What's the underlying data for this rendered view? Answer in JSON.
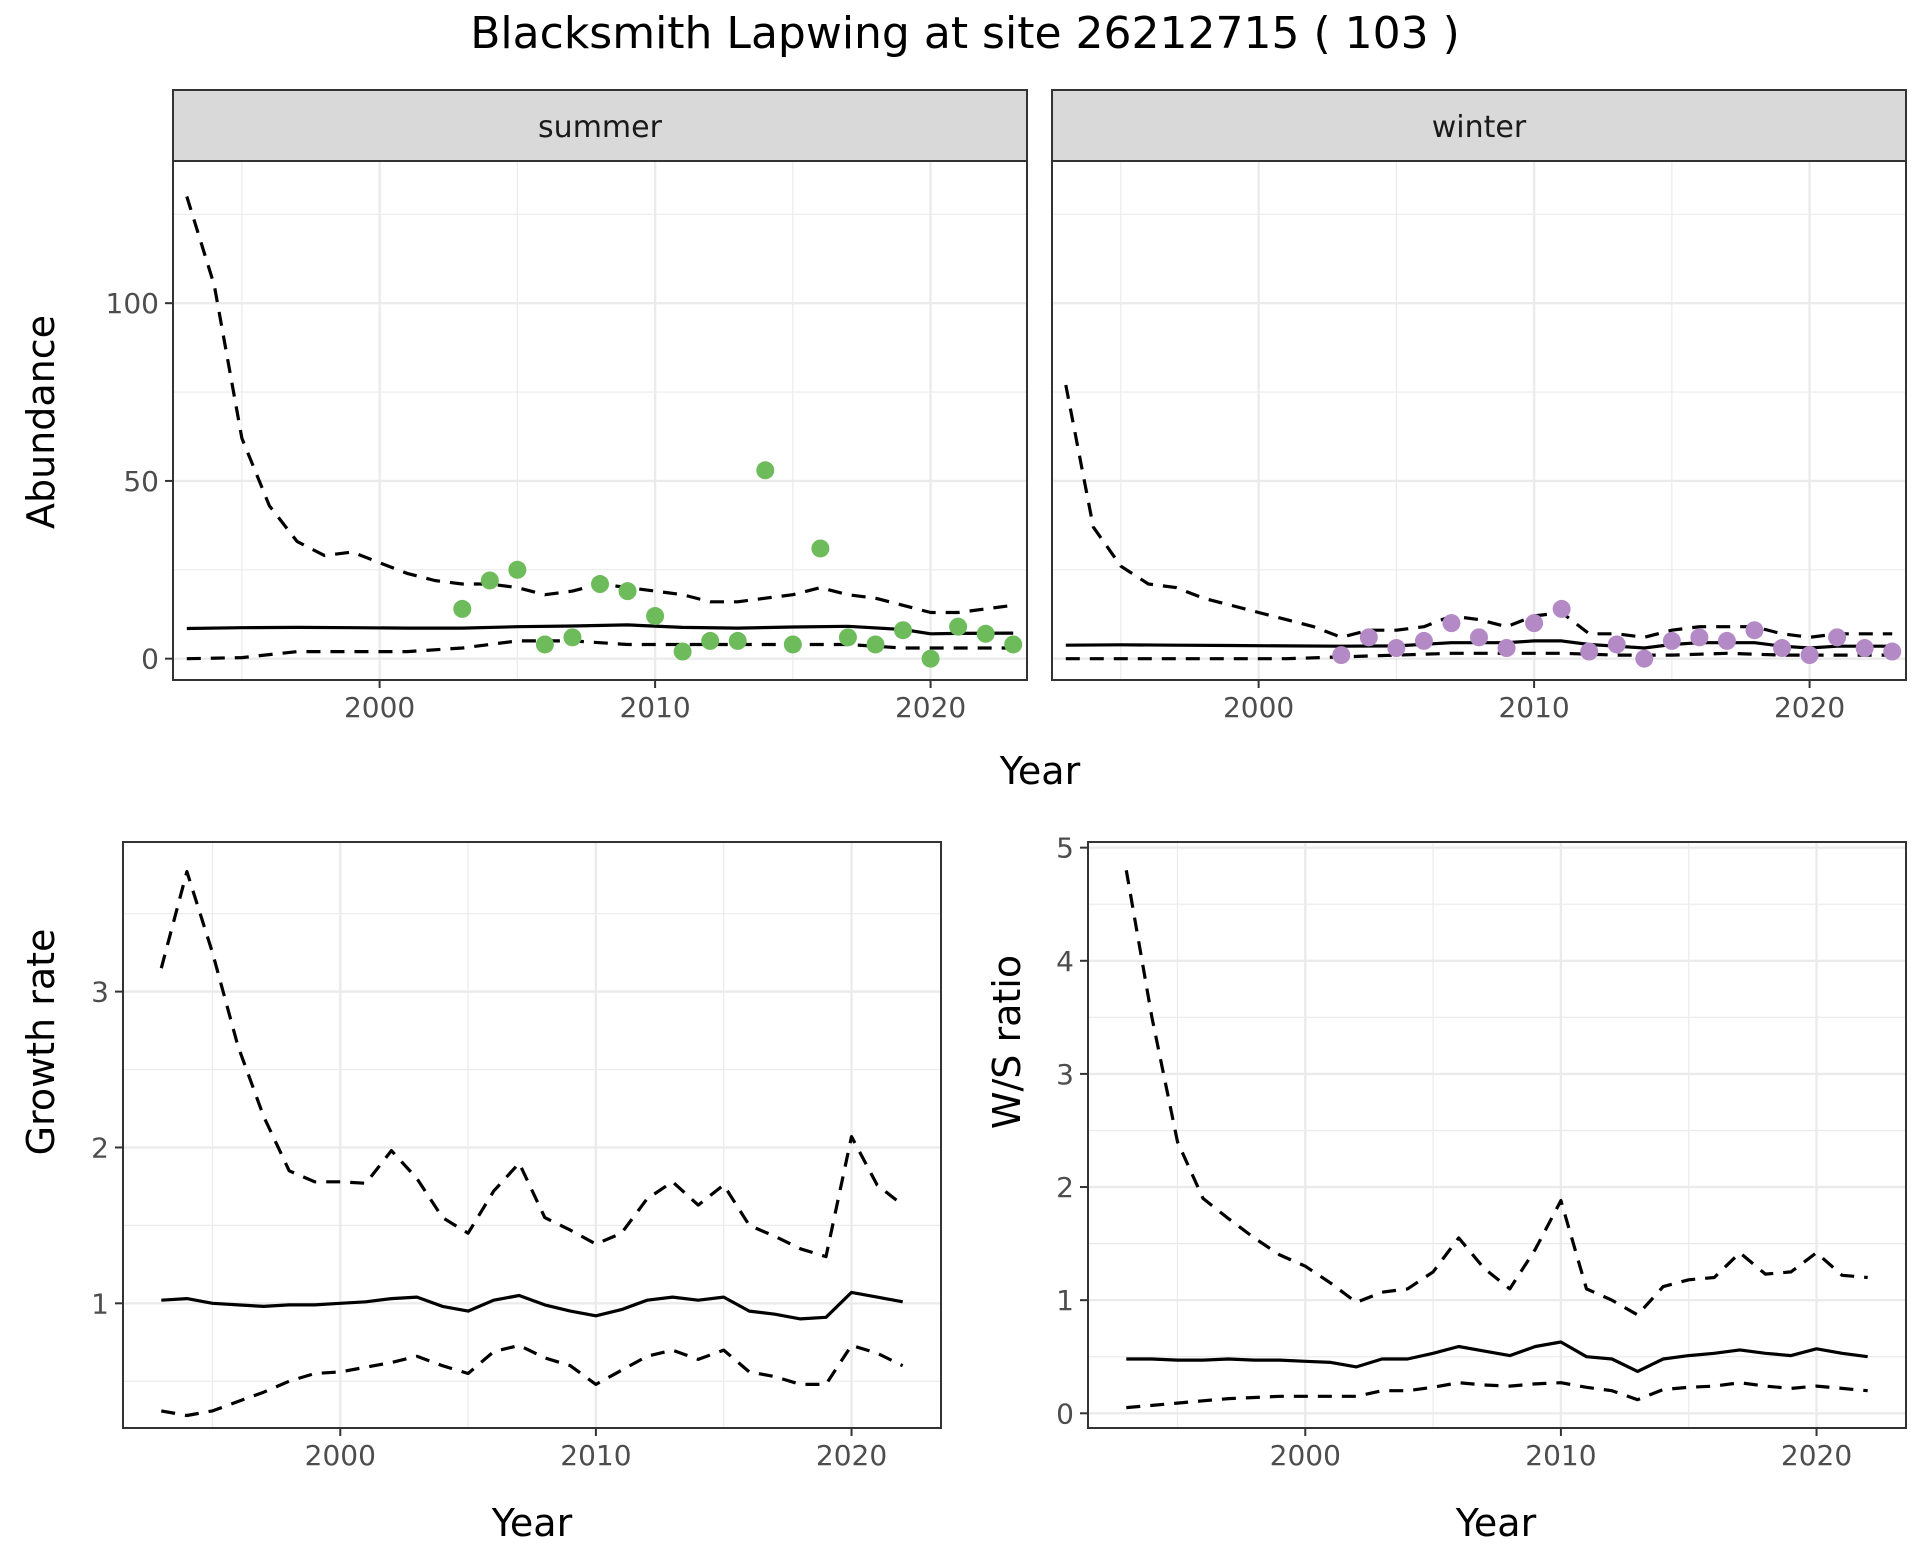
{
  "figure": {
    "title": "Blacksmith Lapwing at site 26212715 ( 103 )"
  },
  "colors": {
    "summer_points": "#6dbb5b",
    "winter_points": "#b48ac6",
    "lines": "#000000",
    "strip_fill": "#d9d9d9",
    "grid": "#ebebeb"
  },
  "chart_data": [
    {
      "type": "line",
      "title": "",
      "facet_label": "summer",
      "xlabel": "Year",
      "ylabel": "Abundance",
      "xlim": [
        1992.5,
        2023.5
      ],
      "ylim": [
        -6,
        140
      ],
      "x_ticks": [
        2000,
        2010,
        2020
      ],
      "y_ticks": [
        0,
        50,
        100
      ],
      "grid": true,
      "legend": "none",
      "points": {
        "x": [
          2003,
          2004,
          2005,
          2006,
          2007,
          2008,
          2009,
          2010,
          2011,
          2012,
          2013,
          2014,
          2015,
          2016,
          2017,
          2018,
          2019,
          2020,
          2021,
          2022,
          2023
        ],
        "y": [
          14,
          22,
          25,
          4,
          6,
          21,
          19,
          12,
          2,
          5,
          5,
          53,
          4,
          31,
          6,
          4,
          8,
          0,
          9,
          7,
          4
        ]
      },
      "series": [
        {
          "role": "estimate",
          "x": [
            1993,
            1995,
            1997,
            1999,
            2001,
            2003,
            2005,
            2007,
            2009,
            2011,
            2013,
            2015,
            2017,
            2019,
            2020,
            2021,
            2023
          ],
          "values": [
            8.5,
            8.7,
            8.8,
            8.7,
            8.6,
            8.6,
            9.0,
            9.2,
            9.5,
            8.8,
            8.6,
            8.9,
            9.1,
            8.2,
            7.0,
            7.1,
            7.2
          ]
        },
        {
          "role": "upper",
          "x": [
            1993,
            1994,
            1995,
            1996,
            1997,
            1998,
            1999,
            2000,
            2001,
            2002,
            2003,
            2004,
            2005,
            2006,
            2007,
            2008,
            2009,
            2010,
            2011,
            2012,
            2013,
            2014,
            2015,
            2016,
            2017,
            2018,
            2019,
            2020,
            2021,
            2022,
            2023
          ],
          "values": [
            130,
            105,
            62,
            43,
            33,
            29,
            30,
            27,
            24,
            22,
            21,
            21,
            20,
            18,
            19,
            21,
            20,
            19,
            18,
            16,
            16,
            17,
            18,
            20,
            18,
            17,
            15,
            13,
            13,
            14,
            15
          ]
        },
        {
          "role": "lower",
          "x": [
            1993,
            1995,
            1997,
            1999,
            2001,
            2003,
            2005,
            2007,
            2009,
            2011,
            2013,
            2015,
            2017,
            2019,
            2021,
            2023
          ],
          "values": [
            0,
            0.3,
            2,
            2,
            2,
            3,
            5,
            5,
            4,
            4,
            4,
            4,
            4,
            3,
            3,
            3
          ]
        }
      ]
    },
    {
      "type": "line",
      "title": "",
      "facet_label": "winter",
      "xlabel": "Year",
      "ylabel": "",
      "xlim": [
        1992.5,
        2023.5
      ],
      "ylim": [
        -6,
        140
      ],
      "x_ticks": [
        2000,
        2010,
        2020
      ],
      "y_ticks": [
        0,
        50,
        100
      ],
      "grid": true,
      "legend": "none",
      "points": {
        "x": [
          2003,
          2004,
          2005,
          2006,
          2007,
          2008,
          2009,
          2010,
          2011,
          2012,
          2013,
          2014,
          2015,
          2016,
          2017,
          2018,
          2019,
          2020,
          2021,
          2022,
          2023
        ],
        "y": [
          1,
          6,
          3,
          5,
          10,
          6,
          3,
          10,
          14,
          2,
          4,
          0,
          5,
          6,
          5,
          8,
          3,
          1,
          6,
          3,
          2
        ]
      },
      "series": [
        {
          "role": "estimate",
          "x": [
            1993,
            1995,
            1997,
            1999,
            2001,
            2003,
            2005,
            2007,
            2009,
            2010,
            2011,
            2012,
            2013,
            2014,
            2015,
            2016,
            2017,
            2018,
            2019,
            2020,
            2021,
            2023
          ],
          "values": [
            3.8,
            3.9,
            3.8,
            3.7,
            3.6,
            3.5,
            3.6,
            4.5,
            4.5,
            5,
            5,
            4,
            3.5,
            3,
            4,
            4.5,
            4.5,
            4.5,
            3.5,
            3,
            3.5,
            3.5
          ]
        },
        {
          "role": "upper",
          "x": [
            1993,
            1994,
            1995,
            1996,
            1997,
            1998,
            1999,
            2000,
            2001,
            2002,
            2003,
            2004,
            2005,
            2006,
            2007,
            2008,
            2009,
            2010,
            2011,
            2012,
            2013,
            2014,
            2015,
            2016,
            2017,
            2018,
            2019,
            2020,
            2021,
            2022,
            2023
          ],
          "values": [
            77,
            37,
            26,
            21,
            20,
            17,
            15,
            13,
            11,
            9,
            6,
            8,
            8,
            9,
            12,
            11,
            9,
            12,
            13,
            7,
            7,
            6,
            8,
            9,
            9,
            9,
            7,
            6,
            7,
            7,
            7
          ]
        },
        {
          "role": "lower",
          "x": [
            1993,
            1995,
            1997,
            1999,
            2001,
            2003,
            2005,
            2007,
            2009,
            2011,
            2013,
            2015,
            2017,
            2019,
            2021,
            2023
          ],
          "values": [
            0,
            0,
            0,
            0,
            0,
            0.5,
            1,
            1.5,
            1.5,
            1.5,
            1,
            1,
            1.5,
            1,
            1,
            1
          ]
        }
      ]
    },
    {
      "type": "line",
      "title": "",
      "xlabel": "Year",
      "ylabel": "Growth rate",
      "xlim": [
        1991.5,
        2023.5
      ],
      "ylim": [
        0.2,
        3.96
      ],
      "x_ticks": [
        2000,
        2010,
        2020
      ],
      "y_ticks": [
        1,
        2,
        3
      ],
      "grid": true,
      "legend": "none",
      "series": [
        {
          "role": "estimate",
          "x": [
            1993,
            1994,
            1995,
            1996,
            1997,
            1998,
            1999,
            2000,
            2001,
            2002,
            2003,
            2004,
            2005,
            2006,
            2007,
            2008,
            2009,
            2010,
            2011,
            2012,
            2013,
            2014,
            2015,
            2016,
            2017,
            2018,
            2019,
            2020,
            2021,
            2022
          ],
          "values": [
            1.02,
            1.03,
            1.0,
            0.99,
            0.98,
            0.99,
            0.99,
            1.0,
            1.01,
            1.03,
            1.04,
            0.98,
            0.95,
            1.02,
            1.05,
            0.99,
            0.95,
            0.92,
            0.96,
            1.02,
            1.04,
            1.02,
            1.04,
            0.95,
            0.93,
            0.9,
            0.91,
            1.07,
            1.04,
            1.01
          ]
        },
        {
          "role": "upper",
          "x": [
            1993,
            1994,
            1995,
            1996,
            1997,
            1998,
            1999,
            2000,
            2001,
            2002,
            2003,
            2004,
            2005,
            2006,
            2007,
            2008,
            2009,
            2010,
            2011,
            2012,
            2013,
            2014,
            2015,
            2016,
            2017,
            2018,
            2019,
            2020,
            2021,
            2022
          ],
          "values": [
            3.15,
            3.77,
            3.25,
            2.65,
            2.2,
            1.85,
            1.78,
            1.78,
            1.77,
            1.98,
            1.8,
            1.55,
            1.45,
            1.72,
            1.9,
            1.55,
            1.47,
            1.38,
            1.45,
            1.67,
            1.78,
            1.63,
            1.76,
            1.5,
            1.43,
            1.35,
            1.3,
            2.07,
            1.76,
            1.63
          ]
        },
        {
          "role": "lower",
          "x": [
            1993,
            1994,
            1995,
            1996,
            1997,
            1998,
            1999,
            2000,
            2001,
            2002,
            2003,
            2004,
            2005,
            2006,
            2007,
            2008,
            2009,
            2010,
            2011,
            2012,
            2013,
            2014,
            2015,
            2016,
            2017,
            2018,
            2019,
            2020,
            2021,
            2022
          ],
          "values": [
            0.31,
            0.28,
            0.31,
            0.37,
            0.43,
            0.5,
            0.55,
            0.56,
            0.59,
            0.62,
            0.66,
            0.6,
            0.55,
            0.69,
            0.73,
            0.65,
            0.6,
            0.48,
            0.57,
            0.66,
            0.7,
            0.64,
            0.7,
            0.56,
            0.53,
            0.48,
            0.48,
            0.73,
            0.68,
            0.6
          ]
        }
      ]
    },
    {
      "type": "line",
      "title": "",
      "xlabel": "Year",
      "ylabel": "W/S ratio",
      "xlim": [
        1991.5,
        2023.5
      ],
      "ylim": [
        -0.13,
        5.05
      ],
      "x_ticks": [
        2000,
        2010,
        2020
      ],
      "y_ticks": [
        0,
        1,
        2,
        3,
        4,
        5
      ],
      "grid": true,
      "legend": "none",
      "series": [
        {
          "role": "estimate",
          "x": [
            1993,
            1994,
            1995,
            1996,
            1997,
            1998,
            1999,
            2000,
            2001,
            2002,
            2003,
            2004,
            2005,
            2006,
            2007,
            2008,
            2009,
            2010,
            2011,
            2012,
            2013,
            2014,
            2015,
            2016,
            2017,
            2018,
            2019,
            2020,
            2021,
            2022
          ],
          "values": [
            0.48,
            0.48,
            0.47,
            0.47,
            0.48,
            0.47,
            0.47,
            0.46,
            0.45,
            0.41,
            0.48,
            0.48,
            0.53,
            0.59,
            0.55,
            0.51,
            0.59,
            0.63,
            0.5,
            0.48,
            0.37,
            0.48,
            0.51,
            0.53,
            0.56,
            0.53,
            0.51,
            0.57,
            0.53,
            0.5
          ]
        },
        {
          "role": "upper",
          "x": [
            1993,
            1994,
            1995,
            1996,
            1997,
            1998,
            1999,
            2000,
            2001,
            2002,
            2003,
            2004,
            2005,
            2006,
            2007,
            2008,
            2009,
            2010,
            2011,
            2012,
            2013,
            2014,
            2015,
            2016,
            2017,
            2018,
            2019,
            2020,
            2021,
            2022
          ],
          "values": [
            4.8,
            3.5,
            2.4,
            1.9,
            1.72,
            1.55,
            1.4,
            1.3,
            1.15,
            0.98,
            1.07,
            1.1,
            1.25,
            1.55,
            1.28,
            1.1,
            1.45,
            1.88,
            1.1,
            1.0,
            0.87,
            1.12,
            1.18,
            1.2,
            1.42,
            1.23,
            1.25,
            1.42,
            1.22,
            1.2
          ]
        },
        {
          "role": "lower",
          "x": [
            1993,
            1994,
            1995,
            1996,
            1997,
            1998,
            1999,
            2000,
            2001,
            2002,
            2003,
            2004,
            2005,
            2006,
            2007,
            2008,
            2009,
            2010,
            2011,
            2012,
            2013,
            2014,
            2015,
            2016,
            2017,
            2018,
            2019,
            2020,
            2021,
            2022
          ],
          "values": [
            0.05,
            0.07,
            0.09,
            0.11,
            0.13,
            0.14,
            0.15,
            0.15,
            0.15,
            0.15,
            0.2,
            0.2,
            0.23,
            0.27,
            0.25,
            0.24,
            0.26,
            0.27,
            0.23,
            0.2,
            0.12,
            0.21,
            0.23,
            0.24,
            0.27,
            0.24,
            0.22,
            0.24,
            0.22,
            0.2
          ]
        }
      ]
    }
  ]
}
